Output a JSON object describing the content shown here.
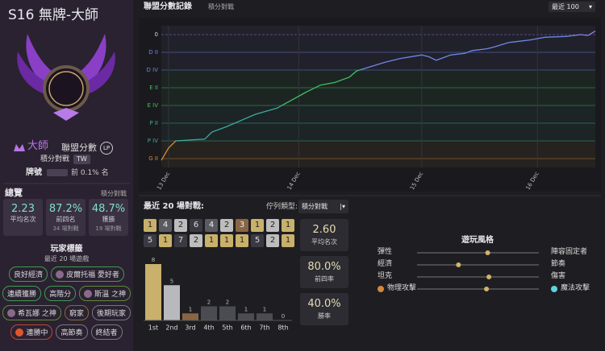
{
  "profile": {
    "title": "S16 無牌-大師",
    "rank": "大師",
    "lp_label": "聯盟分數",
    "lp_badge": "LP",
    "queue": "積分對戰",
    "region": "TW",
    "ladder_label": "牌號",
    "ladder_rank": "前 0.1% 名"
  },
  "overview": {
    "title": "總覽",
    "queue": "積分對戰",
    "stats": [
      {
        "value": "2.23",
        "label": "平均名次"
      },
      {
        "value": "87.2%",
        "label": "前四名",
        "sub": "34 場對戰"
      },
      {
        "value": "48.7%",
        "label": "獲勝",
        "sub": "19 場對戰"
      }
    ]
  },
  "tags": {
    "title": "玩家標籤",
    "subtitle": "最近 20 場遊戲",
    "items": [
      {
        "label": "良好經濟",
        "color": "#3f9a52"
      },
      {
        "label": "皮爾托福 愛好者",
        "color": "#3f9a52"
      },
      {
        "label": "連續獲勝",
        "color": "#3f9a52"
      },
      {
        "label": "高階分",
        "color": "#3f9a52"
      },
      {
        "label": "斯溫 之神",
        "color": "#5e8a3c"
      },
      {
        "label": "希瓦娜 之神",
        "color": "#5e8a3c"
      },
      {
        "label": "窮家",
        "color": "#8a6a3c"
      },
      {
        "label": "後期玩家",
        "color": "#77777f"
      },
      {
        "label": "連勝中",
        "color": "#c0443a"
      },
      {
        "label": "高節奏",
        "color": "#77777f"
      },
      {
        "label": "終結者",
        "color": "#77777f"
      }
    ]
  },
  "lp_panel": {
    "range": "最近 100"
  },
  "recent": {
    "title": "最近 20 場對戰:",
    "queue_label": "佇列類型:",
    "queue": "積分對戰",
    "placements": [
      [
        1,
        4,
        2,
        6,
        4,
        2,
        3,
        1,
        2,
        1
      ],
      [
        5,
        1,
        7,
        2,
        1,
        1,
        1,
        5,
        2,
        1
      ]
    ],
    "stats": [
      {
        "value": "2.60",
        "label": "平均名次"
      },
      {
        "value": "80.0%",
        "label": "前四率"
      },
      {
        "value": "40.0%",
        "label": "勝率"
      }
    ]
  },
  "playstyle": {
    "title": "遊玩風格",
    "rows": [
      {
        "left": "彈性",
        "right": "陣容固定者",
        "value": 58
      },
      {
        "left": "經濟",
        "right": "節奏",
        "value": 34
      },
      {
        "left": "坦克",
        "right": "傷害",
        "value": 59
      },
      {
        "left": "物理攻擊",
        "right": "魔法攻擊",
        "value": 57
      }
    ]
  },
  "chart_data": [
    {
      "type": "line",
      "title": "聯盟分數記錄",
      "subtitle": "積分對戰",
      "x": [
        0,
        1,
        2,
        4,
        6,
        7,
        9,
        11,
        13,
        16,
        18,
        20,
        22,
        24,
        26,
        27,
        29,
        31,
        33,
        36,
        37,
        38,
        40,
        42,
        43,
        45,
        46,
        48,
        50,
        51,
        53,
        56,
        58,
        59,
        60
      ],
      "values": [
        -1420,
        -1280,
        -1200,
        -1190,
        -1180,
        -1100,
        -1040,
        -970,
        -900,
        -830,
        -740,
        -650,
        -570,
        -540,
        -480,
        -410,
        -360,
        -310,
        -270,
        -230,
        -250,
        -290,
        -230,
        -210,
        -180,
        -160,
        -140,
        -90,
        -70,
        -60,
        -30,
        -20,
        0,
        -10,
        40
      ],
      "xlim": [
        0,
        60
      ],
      "xticks": [
        {
          "value": 1,
          "label": "13 Dec"
        },
        {
          "value": 19,
          "label": "14 Dec"
        },
        {
          "value": 36,
          "label": "15 Dec"
        },
        {
          "value": 52,
          "label": "16 Dec"
        }
      ],
      "ylim": [
        -1500,
        100
      ],
      "yticks": [
        0,
        {
          "value": -200,
          "label": "D II"
        },
        {
          "value": -400,
          "label": "D IV"
        },
        {
          "value": -600,
          "label": "E II"
        },
        {
          "value": -800,
          "label": "E IV"
        },
        {
          "value": -1000,
          "label": "P II"
        },
        {
          "value": -1200,
          "label": "P IV"
        },
        {
          "value": -1400,
          "label": "G II"
        }
      ]
    },
    {
      "type": "bar",
      "categories": [
        "1st",
        "2nd",
        "3rd",
        "4th",
        "5th",
        "6th",
        "7th",
        "8th"
      ],
      "values": [
        8,
        5,
        1,
        2,
        2,
        1,
        1,
        0
      ],
      "colors": [
        "#c9b06b",
        "#b9b9bd",
        "#8a6544",
        "#4b4b52",
        "#4b4b52",
        "#4b4b52",
        "#4b4b52",
        "#4b4b52"
      ]
    }
  ]
}
